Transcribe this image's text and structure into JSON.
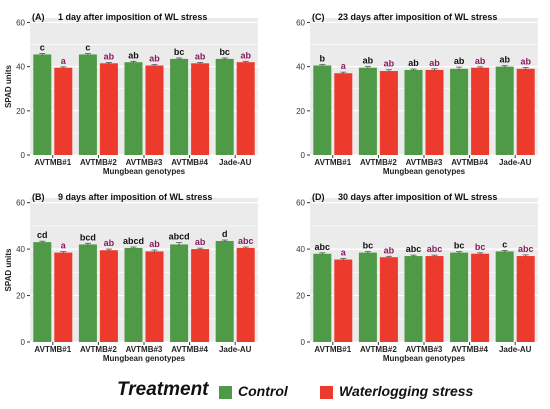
{
  "colors": {
    "control": "#4f9a46",
    "waterlogging": "#ec3a2c",
    "panel_background": "#ebebeb",
    "grid": "#ffffff",
    "letter_control": "#111111",
    "letter_waterlogging": "#8b1a5e",
    "error_bar": "#555555"
  },
  "legend": {
    "title": "Treatment",
    "items": [
      {
        "label": "Control",
        "color": "#4f9a46"
      },
      {
        "label": "Waterlogging stress",
        "color": "#ec3a2c"
      }
    ]
  },
  "chart_data": [
    {
      "type": "bar",
      "panel": "(A)",
      "title": "1 day after imposition of WL stress",
      "xlabel": "Mungbean genotypes",
      "ylabel": "SPAD units",
      "ylim": [
        0,
        62
      ],
      "yticks": [
        0,
        20,
        40,
        60
      ],
      "grid": true,
      "categories": [
        "AVTMB#1",
        "AVTMB#2",
        "AVTMB#3",
        "AVTMB#4",
        "Jade-AU"
      ],
      "series": [
        {
          "name": "Control",
          "values": [
            45.5,
            45.5,
            42.0,
            43.5,
            43.5
          ],
          "errors": [
            0.4,
            0.4,
            0.4,
            0.4,
            0.4
          ],
          "letters": [
            "c",
            "c",
            "ab",
            "bc",
            "bc"
          ]
        },
        {
          "name": "Waterlogging stress",
          "values": [
            39.5,
            41.5,
            40.5,
            41.5,
            42.0
          ],
          "errors": [
            0.4,
            0.4,
            0.4,
            0.4,
            0.4
          ],
          "letters": [
            "a",
            "ab",
            "ab",
            "ab",
            "ab"
          ]
        }
      ]
    },
    {
      "type": "bar",
      "panel": "(C)",
      "title": "23 days after imposition of WL stress",
      "xlabel": "Mungbean genotypes",
      "ylabel": "",
      "ylim": [
        0,
        62
      ],
      "yticks": [
        0,
        20,
        40,
        60
      ],
      "grid": true,
      "categories": [
        "AVTMB#1",
        "AVTMB#2",
        "AVTMB#3",
        "AVTMB#4",
        "Jade-AU"
      ],
      "series": [
        {
          "name": "Control",
          "values": [
            40.5,
            39.5,
            38.5,
            39.0,
            40.0
          ],
          "errors": [
            0.4,
            0.5,
            0.4,
            0.8,
            0.4
          ],
          "letters": [
            "b",
            "ab",
            "ab",
            "ab",
            "ab"
          ]
        },
        {
          "name": "Waterlogging stress",
          "values": [
            37.0,
            38.0,
            38.5,
            39.5,
            39.0
          ],
          "errors": [
            0.5,
            0.6,
            0.5,
            0.4,
            0.6
          ],
          "letters": [
            "a",
            "ab",
            "ab",
            "ab",
            "ab"
          ]
        }
      ]
    },
    {
      "type": "bar",
      "panel": "(B)",
      "title": "9 days after imposition of WL stress",
      "xlabel": "Mungbean genotypes",
      "ylabel": "SPAD units",
      "ylim": [
        0,
        62
      ],
      "yticks": [
        0,
        20,
        40,
        60
      ],
      "grid": true,
      "categories": [
        "AVTMB#1",
        "AVTMB#2",
        "AVTMB#3",
        "AVTMB#4",
        "Jade-AU"
      ],
      "series": [
        {
          "name": "Control",
          "values": [
            43.0,
            42.0,
            40.5,
            42.0,
            43.5
          ],
          "errors": [
            0.4,
            0.5,
            0.4,
            0.8,
            0.4
          ],
          "letters": [
            "cd",
            "bcd",
            "abcd",
            "abcd",
            "d"
          ]
        },
        {
          "name": "Waterlogging stress",
          "values": [
            38.5,
            39.5,
            39.0,
            40.0,
            40.5
          ],
          "errors": [
            0.4,
            0.5,
            0.6,
            0.4,
            0.4
          ],
          "letters": [
            "a",
            "ab",
            "ab",
            "ab",
            "abc"
          ]
        }
      ]
    },
    {
      "type": "bar",
      "panel": "(D)",
      "title": "30 days after imposition of WL stress",
      "xlabel": "Mungbean genotypes",
      "ylabel": "",
      "ylim": [
        0,
        62
      ],
      "yticks": [
        0,
        20,
        40,
        60
      ],
      "grid": true,
      "categories": [
        "AVTMB#1",
        "AVTMB#2",
        "AVTMB#3",
        "AVTMB#4",
        "Jade-AU"
      ],
      "series": [
        {
          "name": "Control",
          "values": [
            38.0,
            38.5,
            37.0,
            38.5,
            39.0
          ],
          "errors": [
            0.4,
            0.4,
            0.4,
            0.4,
            0.4
          ],
          "letters": [
            "abc",
            "bc",
            "abc",
            "bc",
            "c"
          ]
        },
        {
          "name": "Waterlogging stress",
          "values": [
            35.5,
            36.5,
            37.0,
            38.0,
            37.0
          ],
          "errors": [
            0.5,
            0.4,
            0.4,
            0.4,
            0.5
          ],
          "letters": [
            "a",
            "ab",
            "abc",
            "bc",
            "abc"
          ]
        }
      ]
    }
  ]
}
